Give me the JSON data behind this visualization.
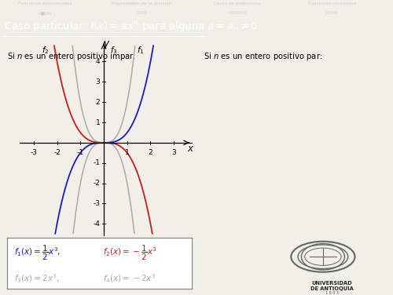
{
  "nav_items": [
    "Funciones polinomiales",
    "Propiedades de la división",
    "Ceros de polinomios",
    "Funciones racionales"
  ],
  "nav_dots": [
    "0●00",
    "000",
    "000000",
    "0000"
  ],
  "nav_bg": "#1a1a3a",
  "title_bg": "#3333aa",
  "title_color": "#ffffff",
  "bg_color": "#f0efe8",
  "plot_bg": "#f0efe8",
  "text_odd": "Si $n$ es un entero positivo impar:",
  "text_even": "Si $n$ es un entero positivo par:",
  "xlim": [
    -3.6,
    3.8
  ],
  "ylim": [
    -4.6,
    5.0
  ],
  "xticks": [
    -3,
    -2,
    -1,
    1,
    2,
    3
  ],
  "yticks": [
    -4,
    -3,
    -2,
    -1,
    1,
    2,
    3,
    4
  ],
  "f1_color": "#1a1acc",
  "f2_color": "#cc1a1a",
  "f3_color": "#aaaaaa",
  "legend_border": "#888888"
}
